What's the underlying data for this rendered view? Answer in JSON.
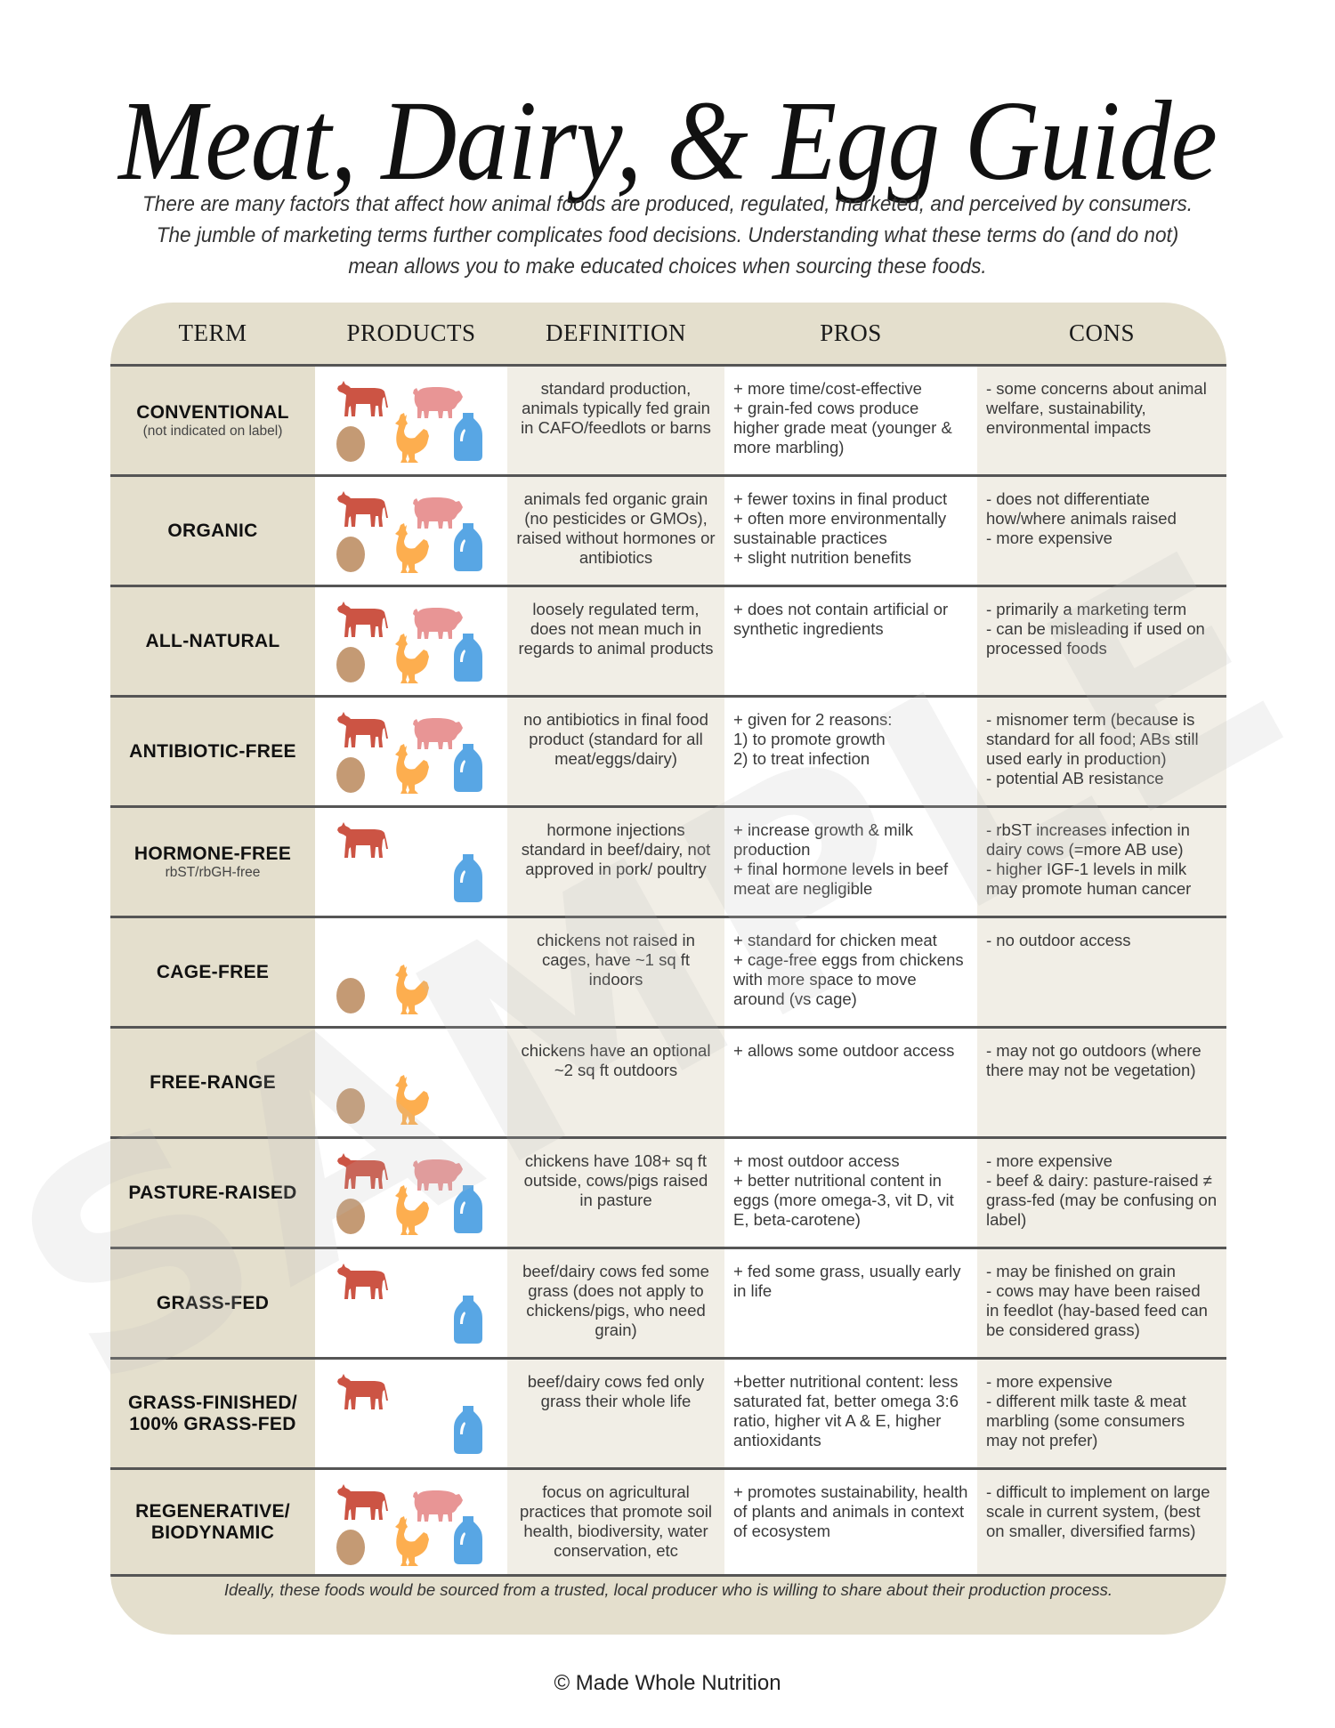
{
  "title": "Meat, Dairy, & Egg Guide",
  "intro": "There are many factors that affect how animal foods are produced, regulated, marketed, and perceived by consumers. The jumble of marketing terms further complicates food decisions. Understanding what these terms do (and do not) mean allows you to make educated choices when sourcing these foods.",
  "watermark": "SAMPLE",
  "colors": {
    "header_band": "#e4dfcd",
    "light_cell": "#f1eee6",
    "cow": "#cc5444",
    "pig": "#e89595",
    "egg": "#c49a74",
    "chicken": "#fdae4f",
    "milk": "#58a6e4"
  },
  "table": {
    "headers": [
      "TERM",
      "PRODUCTS",
      "DEFINITION",
      "PROS",
      "CONS"
    ],
    "rows": [
      {
        "term": "CONVENTIONAL",
        "subterm": "(not indicated on label)",
        "products": [
          "cow",
          "pig",
          "egg",
          "chicken",
          "milk"
        ],
        "definition": "standard production, animals typically fed grain in CAFO/feedlots or barns",
        "pros": "+ more time/cost-effective\n+ grain-fed cows produce higher grade meat (younger & more marbling)",
        "cons": "- some concerns about animal welfare, sustainability, environmental impacts"
      },
      {
        "term": "ORGANIC",
        "subterm": "",
        "products": [
          "cow",
          "pig",
          "egg",
          "chicken",
          "milk"
        ],
        "definition": "animals fed organic grain (no pesticides or GMOs), raised without hormones or antibiotics",
        "pros": "+ fewer toxins in final product\n+ often more environmentally sustainable practices\n+ slight nutrition benefits",
        "cons": "- does not differentiate how/where animals raised\n- more expensive"
      },
      {
        "term": "ALL-NATURAL",
        "subterm": "",
        "products": [
          "cow",
          "pig",
          "egg",
          "chicken",
          "milk"
        ],
        "definition": "loosely regulated term, does not mean much in regards to animal products",
        "pros": "+ does not contain artificial or synthetic ingredients",
        "cons": "- primarily a marketing term\n- can be misleading if used on processed foods"
      },
      {
        "term": "ANTIBIOTIC-FREE",
        "subterm": "",
        "products": [
          "cow",
          "pig",
          "egg",
          "chicken",
          "milk"
        ],
        "definition": "no antibiotics in final food product (standard for all meat/eggs/dairy)",
        "pros": "+ given for 2 reasons:\n1) to promote growth\n2) to treat infection",
        "cons": "- misnomer term (because is standard for all food; ABs still used early in production)\n- potential AB resistance"
      },
      {
        "term": "HORMONE-FREE",
        "subterm": "rbST/rbGH-free",
        "products": [
          "cow",
          "milk"
        ],
        "definition": "hormone injections standard in beef/dairy, not approved in pork/ poultry",
        "pros": "+ increase growth & milk production\n+ final hormone levels in beef meat are negligible",
        "cons": "- rbST increases infection in dairy cows (=more AB use)\n- higher IGF-1 levels in milk may promote human cancer"
      },
      {
        "term": "CAGE-FREE",
        "subterm": "",
        "products": [
          "egg",
          "chicken"
        ],
        "definition": "chickens not raised in cages, have ~1 sq ft indoors",
        "pros": "+ standard for chicken meat\n+ cage-free eggs from chickens with more space to move around (vs cage)",
        "cons": "- no outdoor access"
      },
      {
        "term": "FREE-RANGE",
        "subterm": "",
        "products": [
          "egg",
          "chicken"
        ],
        "definition": "chickens have an optional ~2 sq ft outdoors",
        "pros": "+ allows some outdoor access",
        "cons": "- may not go outdoors (where there may not be vegetation)"
      },
      {
        "term": "PASTURE-RAISED",
        "subterm": "",
        "products": [
          "cow",
          "pig",
          "egg",
          "chicken",
          "milk"
        ],
        "definition": "chickens have 108+ sq ft outside, cows/pigs raised in pasture",
        "pros": "+ most outdoor access\n+ better nutritional content in eggs (more omega-3, vit D, vit E, beta-carotene)",
        "cons": "- more expensive\n- beef & dairy: pasture-raised ≠ grass-fed (may be confusing on label)"
      },
      {
        "term": "GRASS-FED",
        "subterm": "",
        "products": [
          "cow",
          "milk"
        ],
        "definition": "beef/dairy cows fed some grass (does not apply to chickens/pigs, who need grain)",
        "pros": "+ fed some grass, usually early in life",
        "cons": "- may be finished on grain\n- cows may have been raised in feedlot (hay-based feed can be considered grass)"
      },
      {
        "term": "GRASS-FINISHED/ 100% GRASS-FED",
        "subterm": "",
        "products": [
          "cow",
          "milk"
        ],
        "definition": "beef/dairy cows fed only grass their whole life",
        "pros": "+better nutritional content: less saturated fat, better omega 3:6 ratio, higher vit A & E, higher antioxidants",
        "cons": "- more expensive\n- different milk taste & meat marbling (some consumers may not prefer)"
      },
      {
        "term": "REGENERATIVE/ BIODYNAMIC",
        "subterm": "",
        "products": [
          "cow",
          "pig",
          "egg",
          "chicken",
          "milk"
        ],
        "definition": "focus on agricultural practices that promote soil health, biodiversity, water conservation, etc",
        "pros": "+ promotes sustainability, health of plants and animals in context of ecosystem",
        "cons": "- difficult to implement on large scale in current system, (best on smaller, diversified farms)"
      }
    ]
  },
  "footnote": "Ideally, these foods would be sourced from a trusted, local producer who is willing to share about their production process.",
  "copyright": "© Made Whole Nutrition"
}
